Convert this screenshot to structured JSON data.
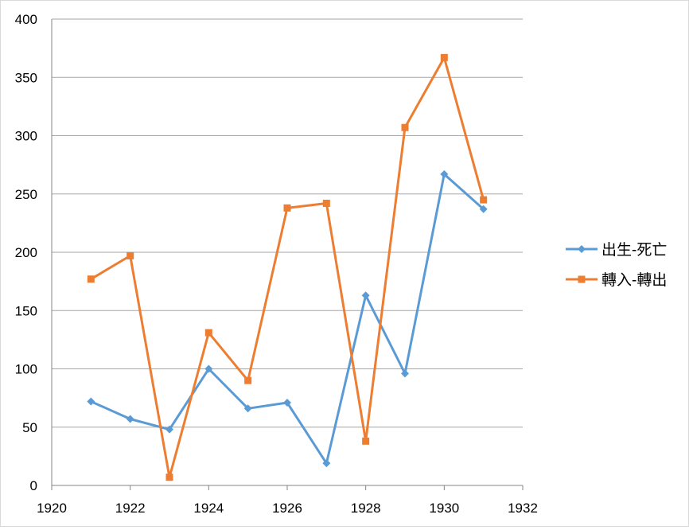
{
  "chart_data": {
    "type": "line",
    "title": "",
    "xlabel": "",
    "ylabel": "",
    "xlim": [
      1920,
      1932
    ],
    "ylim": [
      0,
      400
    ],
    "x_ticks": [
      "1920",
      "1922",
      "1924",
      "1926",
      "1928",
      "1930",
      "1932"
    ],
    "y_ticks": [
      "0",
      "50",
      "100",
      "150",
      "200",
      "250",
      "300",
      "350",
      "400"
    ],
    "grid": true,
    "legend_position": "right",
    "x": [
      1921,
      1922,
      1923,
      1924,
      1925,
      1926,
      1927,
      1928,
      1929,
      1930,
      1931
    ],
    "series": [
      {
        "name": "出生-死亡",
        "color": "#5b9bd5",
        "marker": "diamond",
        "values": [
          72,
          57,
          48,
          100,
          66,
          71,
          19,
          163,
          96,
          267,
          237
        ]
      },
      {
        "name": "轉入-轉出",
        "color": "#ed7d31",
        "marker": "square",
        "values": [
          177,
          197,
          7,
          131,
          90,
          238,
          242,
          38,
          307,
          367,
          245
        ]
      }
    ]
  }
}
